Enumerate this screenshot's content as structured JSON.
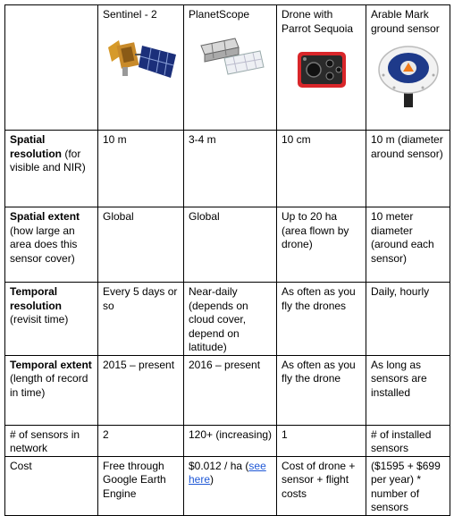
{
  "headers": [
    "",
    "Sentinel - 2",
    "PlanetScope",
    "Drone with Parrot Sequoia",
    "Arable Mark ground sensor"
  ],
  "image_icons": [
    "sentinel-2-satellite-image",
    "planetscope-satellite-image",
    "parrot-sequoia-camera-image",
    "arable-mark-sensor-image"
  ],
  "rows": [
    {
      "label_bold": "Spatial resolution",
      "label_rest": " (for visible and NIR)",
      "cells": [
        "10 m",
        "3-4 m",
        "10 cm",
        "10 m (diameter around sensor)"
      ]
    },
    {
      "label_bold": "Spatial extent",
      "label_rest": " (how large an area does this sensor cover)",
      "cells": [
        "Global",
        "Global",
        "Up to 20 ha (area flown by drone)",
        "10 meter diameter (around each sensor)"
      ]
    },
    {
      "label_bold": "Temporal resolution",
      "label_rest": " (revisit time)",
      "cells": [
        "Every 5 days or so",
        "Near-daily (depends on cloud cover, depend on latitude)",
        "As often as you fly the drones",
        "Daily, hourly"
      ]
    },
    {
      "label_bold": "Temporal extent",
      "label_rest": " (length of record in time)",
      "cells": [
        "2015 – present",
        "2016 – present",
        "As often as you fly the drone",
        "As long as sensors are installed"
      ]
    },
    {
      "label_bold": "",
      "label_rest": "# of sensors in network",
      "cells": [
        "2",
        "120+ (increasing)",
        "1",
        "# of installed sensors"
      ]
    },
    {
      "label_bold": "",
      "label_rest": "Cost",
      "cells": [
        "Free through Google Earth Engine",
        "",
        "Cost of drone + sensor + flight costs",
        " ($1595 + $699 per year) * number of sensors"
      ]
    }
  ],
  "cost_planet": {
    "prefix": "$0.012 / ha (",
    "link": "see here",
    "suffix": ")"
  },
  "colors": {
    "link": "#1f58d6",
    "border": "#000000"
  }
}
